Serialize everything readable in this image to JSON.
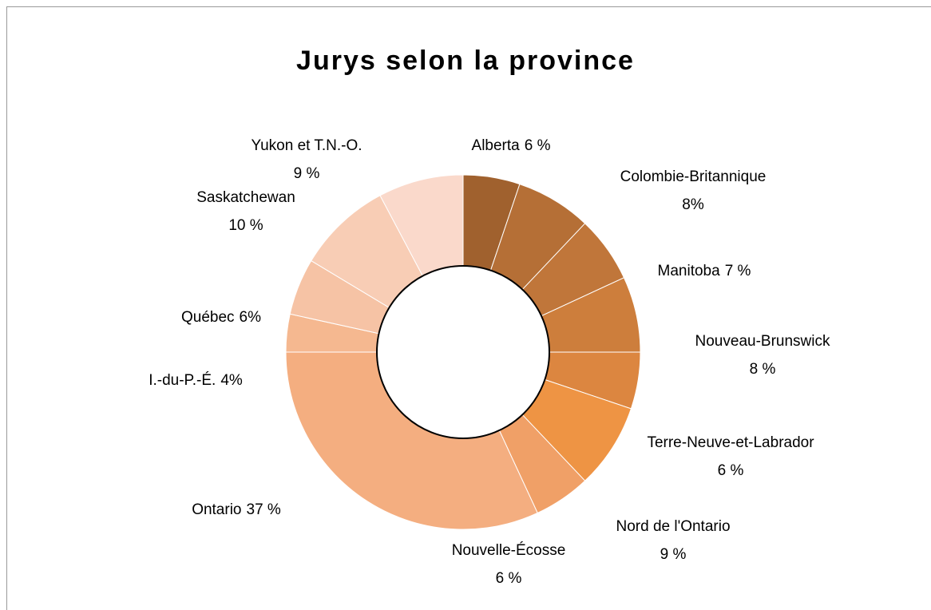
{
  "chart_data": {
    "type": "pie",
    "title": "Jurys selon la province",
    "categories": [
      "Alberta",
      "Colombie-Britannique",
      "Manitoba",
      "Nouveau-Brunswick",
      "Terre-Neuve-et-Labrador",
      "Nord de l'Ontario",
      "Nouvelle-Écosse",
      "Ontario",
      "I.-du-P.-É.",
      "Québec",
      "Saskatchewan",
      "Yukon et T.N.-O."
    ],
    "values": [
      6,
      8,
      7,
      8,
      6,
      9,
      6,
      37,
      4,
      6,
      10,
      9
    ],
    "value_labels": [
      "6 %",
      "8%",
      "7 %",
      "8 %",
      "6 %",
      "9 %",
      "6 %",
      "37 %",
      "4%",
      "6%",
      "10 %",
      "9 %"
    ],
    "colors": [
      "#a0612e",
      "#b56f36",
      "#c0763a",
      "#cd7e3c",
      "#dc8640",
      "#ee9444",
      "#f0a067",
      "#f4ae80",
      "#f5b890",
      "#f6c3a5",
      "#f8cdb5",
      "#fad9cb"
    ]
  }
}
